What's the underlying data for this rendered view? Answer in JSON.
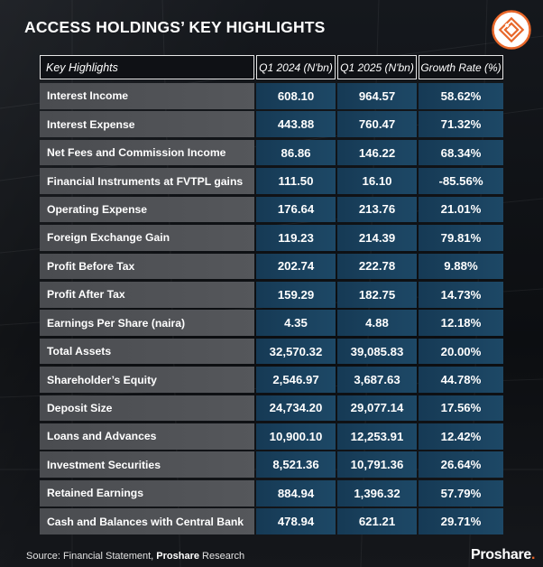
{
  "title": "ACCESS HOLDINGS’ KEY HIGHLIGHTS",
  "logo": {
    "icon": "access-logo-icon",
    "ring_color": "#e8672a"
  },
  "table": {
    "headers": [
      "Key Highlights",
      "Q1 2024 (N'bn)",
      "Q1 2025 (N'bn)",
      "Growth Rate (%)"
    ],
    "rows": [
      {
        "label": "Interest Income",
        "q1_2024": "608.10",
        "q1_2025": "964.57",
        "growth": "58.62%"
      },
      {
        "label": "Interest Expense",
        "q1_2024": "443.88",
        "q1_2025": "760.47",
        "growth": "71.32%"
      },
      {
        "label": "Net Fees and Commission Income",
        "q1_2024": "86.86",
        "q1_2025": "146.22",
        "growth": "68.34%"
      },
      {
        "label": "Financial Instruments at FVTPL gains",
        "q1_2024": "111.50",
        "q1_2025": "16.10",
        "growth": "-85.56%"
      },
      {
        "label": "Operating Expense",
        "q1_2024": "176.64",
        "q1_2025": "213.76",
        "growth": "21.01%"
      },
      {
        "label": "Foreign Exchange Gain",
        "q1_2024": "119.23",
        "q1_2025": "214.39",
        "growth": "79.81%"
      },
      {
        "label": "Profit Before Tax",
        "q1_2024": "202.74",
        "q1_2025": "222.78",
        "growth": "9.88%"
      },
      {
        "label": "Profit After Tax",
        "q1_2024": "159.29",
        "q1_2025": "182.75",
        "growth": "14.73%"
      },
      {
        "label": "Earnings Per Share (naira)",
        "q1_2024": "4.35",
        "q1_2025": "4.88",
        "growth": "12.18%"
      },
      {
        "label": "Total Assets",
        "q1_2024": "32,570.32",
        "q1_2025": "39,085.83",
        "growth": "20.00%"
      },
      {
        "label": "Shareholder’s Equity",
        "q1_2024": "2,546.97",
        "q1_2025": "3,687.63",
        "growth": "44.78%"
      },
      {
        "label": "Deposit Size",
        "q1_2024": "24,734.20",
        "q1_2025": "29,077.14",
        "growth": "17.56%"
      },
      {
        "label": "Loans and  Advances",
        "q1_2024": "10,900.10",
        "q1_2025": "12,253.91",
        "growth": "12.42%"
      },
      {
        "label": "Investment Securities",
        "q1_2024": "8,521.36",
        "q1_2025": "10,791.36",
        "growth": "26.64%"
      },
      {
        "label": "Retained Earnings",
        "q1_2024": "884.94",
        "q1_2025": "1,396.32",
        "growth": "57.79%"
      },
      {
        "label": "Cash and Balances with Central Bank",
        "q1_2024": "478.94",
        "q1_2025": "621.21",
        "growth": "29.71%"
      }
    ]
  },
  "source": {
    "prefix": "Source: Financial Statement, ",
    "bold": "Proshare",
    "suffix": " Research"
  },
  "brand": {
    "name": "Proshare",
    "dot": ".",
    "dot_color": "#e8672a"
  }
}
